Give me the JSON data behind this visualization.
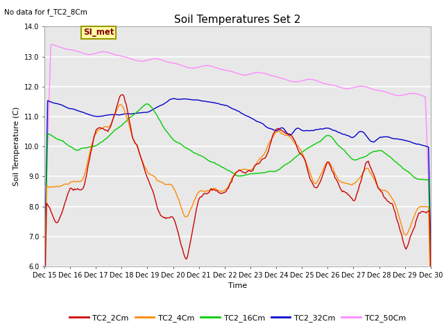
{
  "title": "Soil Temperatures Set 2",
  "subtitle": "No data for f_TC2_8Cm",
  "xlabel": "Time",
  "ylabel": "Soil Temperature (C)",
  "ylim": [
    6.0,
    14.0
  ],
  "yticks": [
    6.0,
    7.0,
    8.0,
    9.0,
    10.0,
    11.0,
    12.0,
    13.0,
    14.0
  ],
  "ytick_labels": [
    "6.0",
    "7.0",
    "8.0",
    "9.0",
    "10.0",
    "11.0",
    "12.0",
    "13.0",
    "14.0"
  ],
  "xtick_labels": [
    "Dec 15",
    "Dec 16",
    "Dec 17",
    "Dec 18",
    "Dec 19",
    "Dec 20",
    "Dec 21",
    "Dec 22",
    "Dec 23",
    "Dec 24",
    "Dec 25",
    "Dec 26",
    "Dec 27",
    "Dec 28",
    "Dec 29",
    "Dec 30"
  ],
  "bg_color": "#e8e8e8",
  "legend_label": "SI_met",
  "series_colors": {
    "TC2_2Cm": "#cc0000",
    "TC2_4Cm": "#ff8800",
    "TC2_16Cm": "#00cc00",
    "TC2_32Cm": "#0000cc",
    "TC2_50Cm": "#ff88ff"
  },
  "legend_entries": [
    "TC2_2Cm",
    "TC2_4Cm",
    "TC2_16Cm",
    "TC2_32Cm",
    "TC2_50Cm"
  ],
  "title_fontsize": 11,
  "axis_fontsize": 8,
  "tick_fontsize": 7,
  "legend_fontsize": 8
}
